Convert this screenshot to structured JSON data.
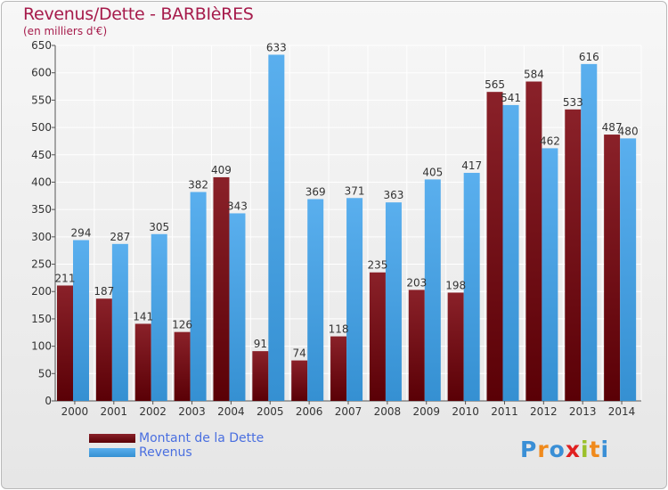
{
  "title": "Revenus/Dette - BARBIèRES",
  "unit_label": "(en milliers d'€)",
  "logo_text": "Proxiti",
  "colors": {
    "dette": "#7a1118",
    "revenus": "#4ba3e3",
    "title": "#a61b4b",
    "legend_text": "#4a6fe0"
  },
  "chart_data": {
    "type": "bar",
    "title": "Revenus/Dette - BARBIèRES",
    "ylabel": "(en milliers d'€)",
    "xlabel": "",
    "categories": [
      "2000",
      "2001",
      "2002",
      "2003",
      "2004",
      "2005",
      "2006",
      "2007",
      "2008",
      "2009",
      "2010",
      "2011",
      "2012",
      "2013",
      "2014"
    ],
    "series": [
      {
        "name": "Montant de la Dette",
        "values": [
          211,
          187,
          141,
          126,
          409,
          91,
          74,
          118,
          235,
          203,
          198,
          565,
          584,
          533,
          487
        ]
      },
      {
        "name": "Revenus",
        "values": [
          294,
          287,
          305,
          382,
          343,
          633,
          369,
          371,
          363,
          405,
          417,
          541,
          462,
          616,
          480
        ]
      }
    ],
    "ylim": [
      0,
      650
    ],
    "yticks": [
      0,
      50,
      100,
      150,
      200,
      250,
      300,
      350,
      400,
      450,
      500,
      550,
      600,
      650
    ],
    "grid": true,
    "legend": "bottom-left"
  }
}
